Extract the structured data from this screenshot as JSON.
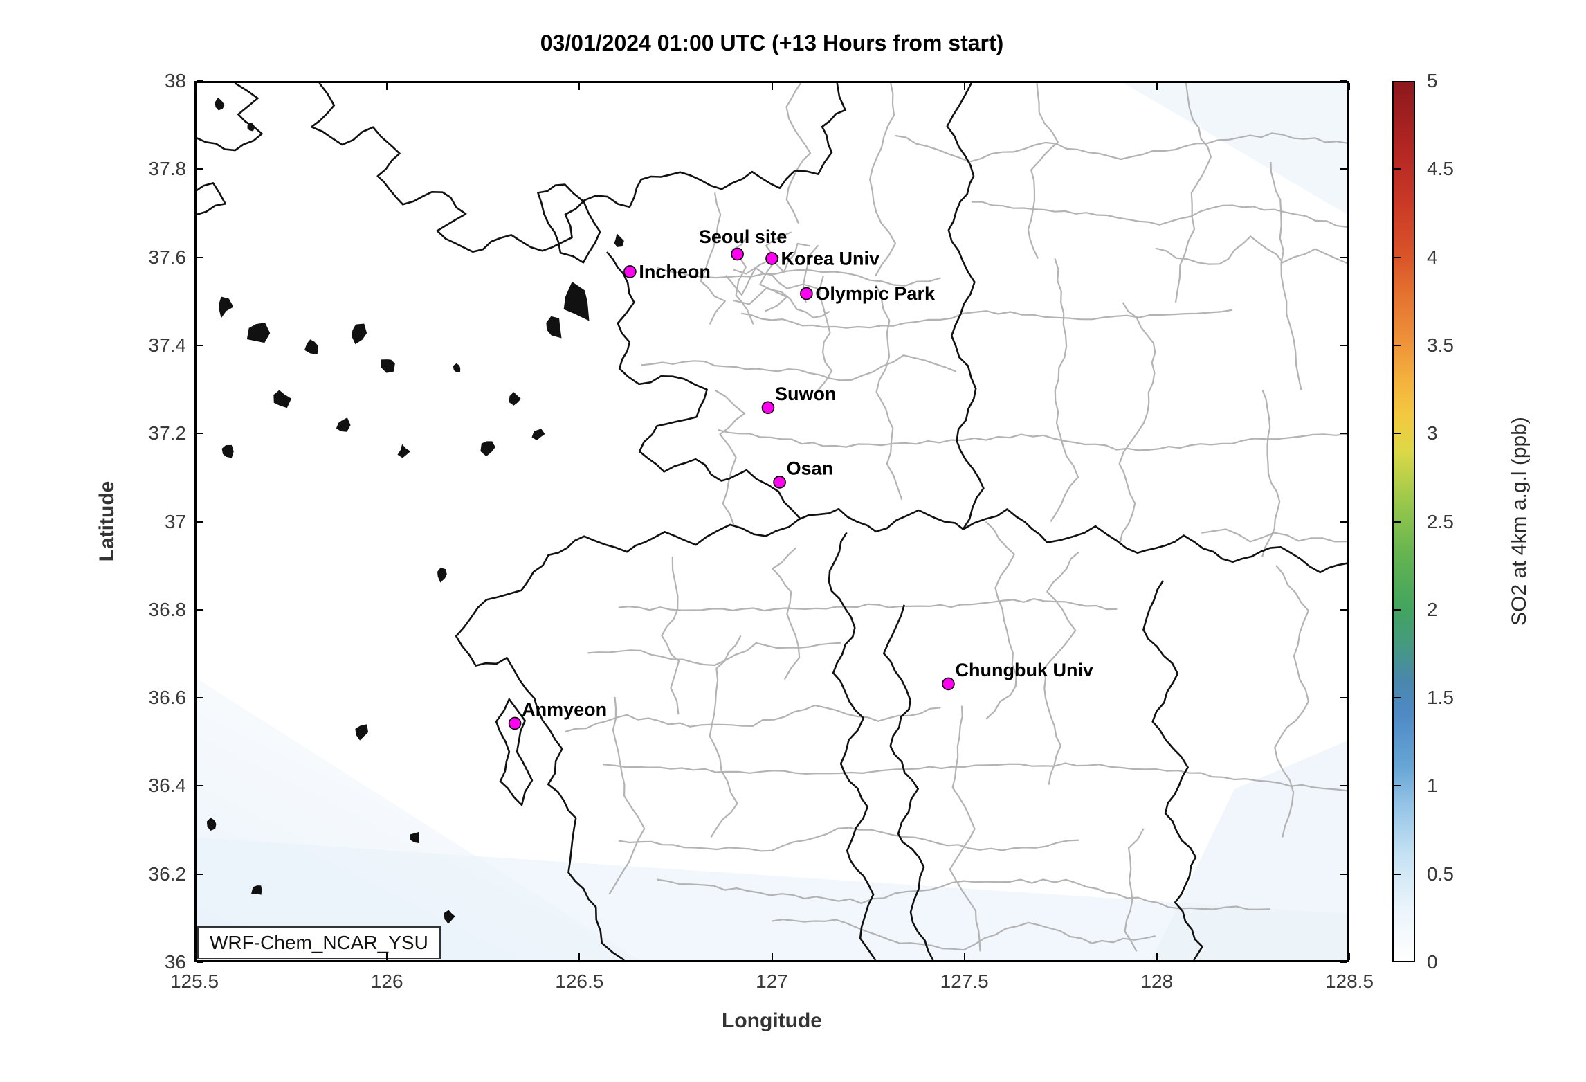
{
  "title": "03/01/2024 01:00 UTC (+13 Hours from start)",
  "watermark_label": "WRF-Chem_NCAR_YSU",
  "axes": {
    "xlabel": "Longitude",
    "ylabel": "Latitude",
    "xlim": [
      125.5,
      128.5
    ],
    "ylim": [
      36,
      38
    ],
    "x_tick_labels": [
      "125.5",
      "126",
      "126.5",
      "127",
      "127.5",
      "128",
      "128.5"
    ],
    "y_tick_labels": [
      "36",
      "36.2",
      "36.4",
      "36.6",
      "36.8",
      "37",
      "37.2",
      "37.4",
      "37.6",
      "37.8",
      "38"
    ]
  },
  "colorbar": {
    "label": "SO2 at 4km a.g.l (ppb)",
    "min": 0,
    "max": 5,
    "tick_labels": [
      "0",
      "0.5",
      "1",
      "1.5",
      "2",
      "2.5",
      "3",
      "3.5",
      "4",
      "4.5",
      "5"
    ],
    "gradient_stops": [
      {
        "v": 0.0,
        "c": "#ffffff"
      },
      {
        "v": 0.3,
        "c": "#eaf4fb"
      },
      {
        "v": 0.6,
        "c": "#c6e2f4"
      },
      {
        "v": 0.9,
        "c": "#92c2e5"
      },
      {
        "v": 1.1,
        "c": "#68a6d5"
      },
      {
        "v": 1.4,
        "c": "#4f8ac6"
      },
      {
        "v": 1.6,
        "c": "#4a87ab"
      },
      {
        "v": 1.8,
        "c": "#459a80"
      },
      {
        "v": 2.0,
        "c": "#42a45f"
      },
      {
        "v": 2.3,
        "c": "#63b351"
      },
      {
        "v": 2.6,
        "c": "#97c74b"
      },
      {
        "v": 2.9,
        "c": "#dcd847"
      },
      {
        "v": 3.1,
        "c": "#f3c940"
      },
      {
        "v": 3.3,
        "c": "#f4b23d"
      },
      {
        "v": 3.5,
        "c": "#ef953a"
      },
      {
        "v": 3.8,
        "c": "#e4712f"
      },
      {
        "v": 4.0,
        "c": "#da5529"
      },
      {
        "v": 4.3,
        "c": "#cb3a26"
      },
      {
        "v": 4.6,
        "c": "#b52723"
      },
      {
        "v": 5.0,
        "c": "#8c181d"
      }
    ]
  },
  "sites": [
    {
      "name": "Seoul site",
      "lon": 126.91,
      "lat": 37.61,
      "label_pos": "above"
    },
    {
      "name": "Incheon",
      "lon": 126.63,
      "lat": 37.57,
      "label_pos": "right"
    },
    {
      "name": "Korea Univ",
      "lon": 127.0,
      "lat": 37.6,
      "label_pos": "right"
    },
    {
      "name": "Olympic Park",
      "lon": 127.09,
      "lat": 37.52,
      "label_pos": "right"
    },
    {
      "name": "Suwon",
      "lon": 126.99,
      "lat": 37.26,
      "label_pos": "above-right"
    },
    {
      "name": "Osan",
      "lon": 127.02,
      "lat": 37.09,
      "label_pos": "above-right"
    },
    {
      "name": "Chungbuk Univ",
      "lon": 127.46,
      "lat": 36.63,
      "label_pos": "above-right"
    },
    {
      "name": "Anmyeon",
      "lon": 126.33,
      "lat": 36.54,
      "label_pos": "above-right"
    }
  ],
  "style_colors": {
    "marker_fill": "#ff00f0",
    "marker_edge": "#000000",
    "coastline": "#111111",
    "admin_boundary": "#b3b3b3",
    "tick_text": "#3a3a3a",
    "sea_tint": "#e9f2fa"
  }
}
